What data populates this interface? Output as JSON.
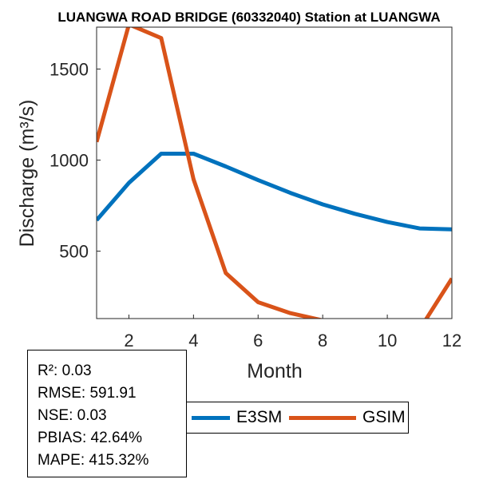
{
  "chart_data": {
    "type": "line",
    "title": "LUANGWA ROAD BRIDGE (60332040)  Station at  LUANGWA",
    "xlabel": "Month",
    "ylabel": "Discharge (m³/s)",
    "xlim": [
      1,
      12
    ],
    "ylim": [
      130,
      1730
    ],
    "xticks": [
      2,
      4,
      6,
      8,
      10,
      12
    ],
    "yticks": [
      500,
      1000,
      1500
    ],
    "x": [
      1,
      2,
      3,
      4,
      5,
      6,
      7,
      8,
      9,
      10,
      11,
      12
    ],
    "series": [
      {
        "name": "E3SM",
        "color": "#0072BD",
        "values": [
          670,
          875,
          1035,
          1035,
          965,
          890,
          820,
          757,
          705,
          660,
          625,
          620
        ]
      },
      {
        "name": "GSIM",
        "color": "#D95319",
        "values": [
          1100,
          1745,
          1670,
          895,
          380,
          220,
          160,
          120,
          90,
          65,
          70,
          350
        ]
      }
    ],
    "legend_placement": "bottom",
    "grid": false
  },
  "stats": {
    "r2": "R²: 0.03",
    "rmse": "RMSE: 591.91",
    "nse": "NSE: 0.03",
    "pbias": "PBIAS: 42.64%",
    "mape": "MAPE: 415.32%"
  }
}
